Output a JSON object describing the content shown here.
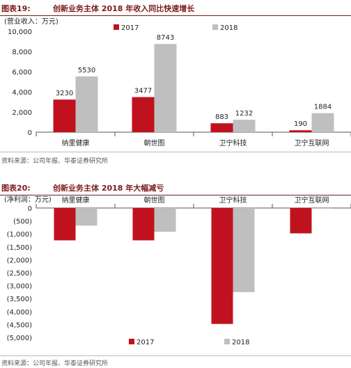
{
  "figures": [
    {
      "number": "图表19:",
      "title": "创新业务主体 2018 年收入同比快速增长",
      "source": "资料来源：公司年报、华泰证券研究所"
    },
    {
      "number": "图表20:",
      "title": "创新业务主体 2018 年大幅减亏",
      "source": "资料来源：公司年报、华泰证券研究所"
    }
  ],
  "chart_data": [
    {
      "type": "bar",
      "title": "创新业务主体 2018 年收入同比快速增长",
      "ylabel": "(营业收入：万元)",
      "categories": [
        "纳里健康",
        "朝世图",
        "卫宁科技",
        "卫宁互联网"
      ],
      "series": [
        {
          "name": "2017",
          "values": [
            3230,
            3477,
            883,
            190
          ],
          "color": "#c0121e"
        },
        {
          "name": "2018",
          "values": [
            5530,
            8743,
            1232,
            1884
          ],
          "color": "#bfbfbf"
        }
      ],
      "ylim": [
        0,
        10000
      ],
      "yticks": [
        0,
        2000,
        4000,
        6000,
        8000,
        10000
      ],
      "ytick_labels": [
        "0",
        "2,000",
        "4,000",
        "6,000",
        "8,000",
        "10,000"
      ],
      "data_labels": true,
      "grid": false,
      "legend": "top"
    },
    {
      "type": "bar",
      "title": "创新业务主体 2018 年大幅减亏",
      "ylabel": "(净利润：万元)",
      "categories": [
        "纳里健康",
        "朝世图",
        "卫宁科技",
        "卫宁互联网"
      ],
      "series": [
        {
          "name": "2017",
          "values": [
            -1250,
            -1250,
            -4480,
            -980
          ],
          "color": "#c0121e"
        },
        {
          "name": "2018",
          "values": [
            -680,
            -920,
            -3250,
            -5
          ],
          "color": "#bfbfbf"
        }
      ],
      "ylim": [
        -5000,
        0
      ],
      "yticks": [
        0,
        -500,
        -1000,
        -1500,
        -2000,
        -2500,
        -3000,
        -3500,
        -4000,
        -4500,
        -5000
      ],
      "ytick_labels": [
        "0",
        "(500)",
        "(1,000)",
        "(1,500)",
        "(2,000)",
        "(2,500)",
        "(3,000)",
        "(3,500)",
        "(4,000)",
        "(4,500)",
        "(5,000)"
      ],
      "data_labels": false,
      "grid": false,
      "legend": "bottom"
    }
  ]
}
